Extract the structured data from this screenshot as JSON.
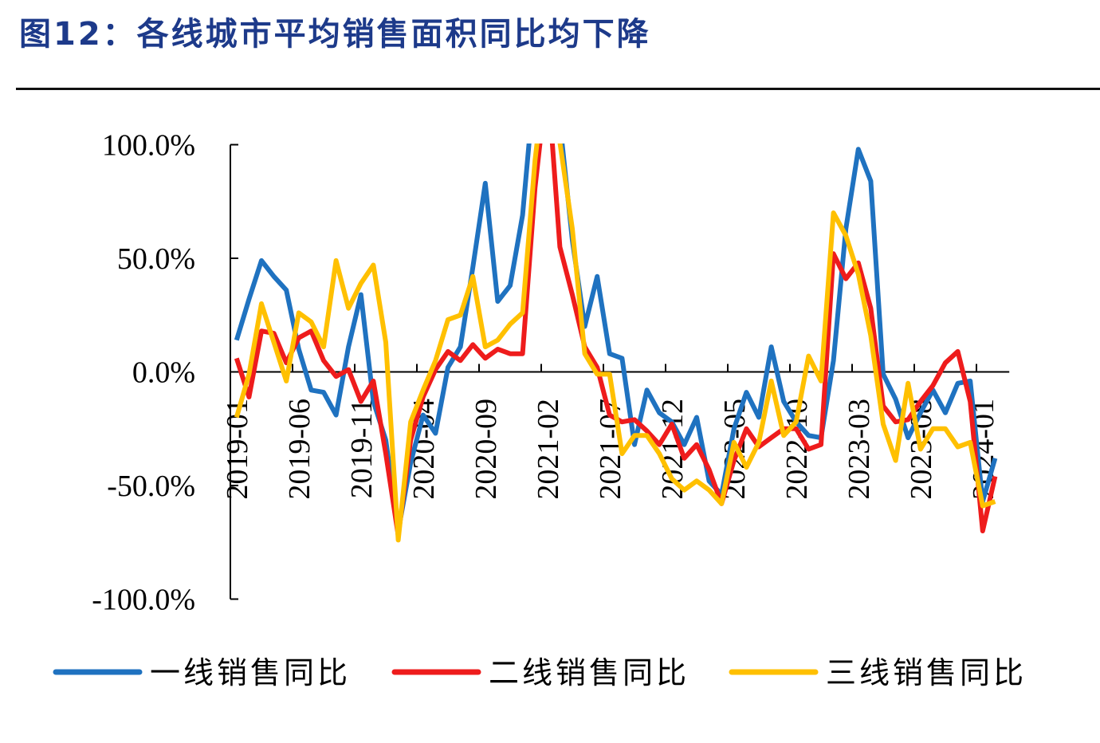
{
  "title": "图12：各线城市平均销售面积同比均下降",
  "chart_data": {
    "type": "line",
    "title": "",
    "xlabel": "",
    "ylabel": "",
    "ylim": [
      -100,
      100
    ],
    "y_ticks": [
      "100.0%",
      "50.0%",
      "0.0%",
      "-50.0%",
      "-100.0%"
    ],
    "y_tick_values": [
      100,
      50,
      0,
      -50,
      -100
    ],
    "x_start": "2019-01",
    "x_tick_labels": [
      "2019-01",
      "2019-06",
      "2019-11",
      "2020-04",
      "2020-09",
      "2021-02",
      "2021-07",
      "2021-12",
      "2022-05",
      "2022-10",
      "2023-03",
      "2023-08",
      "2024-01"
    ],
    "grid": false,
    "legend_position": "bottom",
    "series": [
      {
        "name": "一线销售同比",
        "color": "#1f72c0",
        "values": [
          14,
          32,
          49,
          42,
          36,
          10,
          -8,
          -9,
          -19,
          11,
          34,
          -13,
          -30,
          -70,
          -40,
          -19,
          -27,
          2,
          11,
          46,
          83,
          31,
          38,
          69,
          130,
          180,
          110,
          58,
          20,
          42,
          8,
          6,
          -32,
          -8,
          -18,
          -22,
          -32,
          -20,
          -48,
          -54,
          -25,
          -9,
          -20,
          11,
          -13,
          -22,
          -28,
          -29,
          5,
          63,
          98,
          84,
          -1,
          -12,
          -29,
          -18,
          -8,
          -18,
          -5,
          -4,
          -57,
          -38
        ]
      },
      {
        "name": "二线销售同比",
        "color": "#ee1c1c",
        "values": [
          6,
          -11,
          18,
          17,
          4,
          15,
          18,
          5,
          -2,
          1,
          -13,
          -4,
          -36,
          -72,
          -30,
          -11,
          1,
          9,
          5,
          12,
          6,
          10,
          8,
          8,
          81,
          130,
          55,
          34,
          11,
          2,
          -19,
          -22,
          -21,
          -26,
          -32,
          -23,
          -38,
          -32,
          -43,
          -58,
          -39,
          -25,
          -33,
          -29,
          -25,
          -25,
          -34,
          -32,
          52,
          41,
          48,
          28,
          -15,
          -22,
          -21,
          -13,
          -6,
          4,
          9,
          -13,
          -70,
          -46
        ]
      },
      {
        "name": "三线销售同比",
        "color": "#ffc000",
        "values": [
          -20,
          -1,
          30,
          13,
          -4,
          26,
          22,
          11,
          49,
          28,
          39,
          47,
          13,
          -74,
          -22,
          -8,
          5,
          23,
          25,
          42,
          11,
          14,
          21,
          26,
          93,
          140,
          101,
          63,
          8,
          -1,
          -1,
          -36,
          -28,
          -28,
          -36,
          -47,
          -52,
          -48,
          -52,
          -58,
          -31,
          -42,
          -31,
          -4,
          -28,
          -22,
          7,
          -4,
          70,
          60,
          43,
          16,
          -23,
          -39,
          -5,
          -34,
          -25,
          -25,
          -33,
          -31,
          -59,
          -57
        ]
      }
    ]
  }
}
